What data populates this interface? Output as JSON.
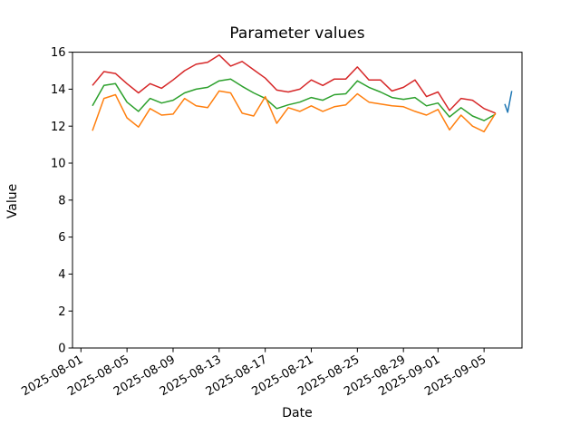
{
  "chart_data": {
    "type": "line",
    "title": "Parameter values",
    "xlabel": "Date",
    "ylabel": "Value",
    "ylim": [
      0,
      16
    ],
    "yticks": [
      0,
      2,
      4,
      6,
      8,
      10,
      12,
      14,
      16
    ],
    "xtick_labels": [
      "2025-08-01",
      "2025-08-05",
      "2025-08-09",
      "2025-08-13",
      "2025-08-17",
      "2025-08-21",
      "2025-08-25",
      "2025-08-29",
      "2025-09-01",
      "2025-09-05"
    ],
    "xtick_day_offsets": [
      0,
      4,
      8,
      12,
      16,
      20,
      24,
      28,
      31,
      35
    ],
    "grid": false,
    "legend": "none",
    "categories": [
      "2025-08-02",
      "2025-08-03",
      "2025-08-04",
      "2025-08-05",
      "2025-08-06",
      "2025-08-07",
      "2025-08-08",
      "2025-08-09",
      "2025-08-10",
      "2025-08-11",
      "2025-08-12",
      "2025-08-13",
      "2025-08-14",
      "2025-08-15",
      "2025-08-16",
      "2025-08-17",
      "2025-08-18",
      "2025-08-19",
      "2025-08-20",
      "2025-08-21",
      "2025-08-22",
      "2025-08-23",
      "2025-08-24",
      "2025-08-25",
      "2025-08-26",
      "2025-08-27",
      "2025-08-28",
      "2025-08-29",
      "2025-08-30",
      "2025-08-31",
      "2025-09-01",
      "2025-09-02",
      "2025-09-03",
      "2025-09-04",
      "2025-09-05",
      "2025-09-06"
    ],
    "series": [
      {
        "name": "red",
        "color": "#d62728",
        "values": [
          14.2,
          14.95,
          14.85,
          14.3,
          13.8,
          14.3,
          14.05,
          14.5,
          15.0,
          15.35,
          15.45,
          15.85,
          15.25,
          15.5,
          15.05,
          14.6,
          13.95,
          13.85,
          14.0,
          14.5,
          14.2,
          14.55,
          14.55,
          15.2,
          14.5,
          14.5,
          13.9,
          14.1,
          14.5,
          13.6,
          13.85,
          12.85,
          13.5,
          13.4,
          12.95,
          12.7
        ]
      },
      {
        "name": "green",
        "color": "#2ca02c",
        "values": [
          13.1,
          14.2,
          14.3,
          13.3,
          12.8,
          13.5,
          13.25,
          13.4,
          13.8,
          14.0,
          14.1,
          14.45,
          14.55,
          14.15,
          13.8,
          13.5,
          12.95,
          13.15,
          13.3,
          13.55,
          13.4,
          13.7,
          13.75,
          14.45,
          14.1,
          13.85,
          13.55,
          13.45,
          13.55,
          13.1,
          13.25,
          12.5,
          13.0,
          12.55,
          12.3,
          12.65
        ]
      },
      {
        "name": "orange",
        "color": "#ff7f0e",
        "values": [
          11.75,
          13.5,
          13.7,
          12.45,
          11.95,
          12.95,
          12.6,
          12.65,
          13.5,
          13.1,
          13.0,
          13.9,
          13.8,
          12.7,
          12.55,
          13.6,
          12.15,
          13.0,
          12.8,
          13.1,
          12.8,
          13.05,
          13.15,
          13.75,
          13.3,
          13.2,
          13.1,
          13.05,
          12.8,
          12.6,
          12.9,
          11.8,
          12.6,
          12.0,
          11.7,
          12.7
        ]
      },
      {
        "name": "blue",
        "color": "#1f77b4",
        "x_day_offsets": [
          36.8,
          37.05,
          37.4
        ],
        "values": [
          13.2,
          12.75,
          13.9
        ]
      }
    ]
  }
}
